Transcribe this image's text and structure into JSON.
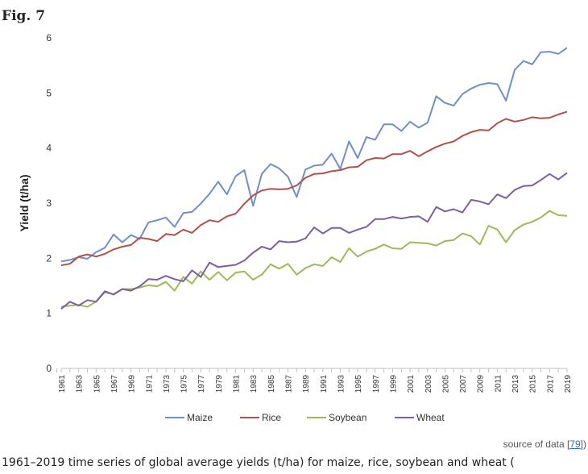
{
  "figure": {
    "label": "Fig. 7",
    "source_prefix": "source of data [",
    "source_ref": "79",
    "source_suffix": "])",
    "caption": "1961–2019 time series of global average yields (t/ha) for maize, rice, soybean and wheat ("
  },
  "colors": {
    "Maize": "#6f8fc9",
    "Rice": "#b0524c",
    "Soybean": "#9bbb59",
    "Wheat": "#7c5fa3",
    "axis": "#bfbfbf"
  },
  "chart_data": {
    "type": "line",
    "title": "",
    "xlabel": "",
    "ylabel": "Yield (t/ha)",
    "ylim": [
      0,
      6
    ],
    "yticks": [
      0,
      1,
      2,
      3,
      4,
      5,
      6
    ],
    "grid": false,
    "legend_position": "bottom",
    "x": [
      1961,
      1962,
      1963,
      1964,
      1965,
      1966,
      1967,
      1968,
      1969,
      1970,
      1971,
      1972,
      1973,
      1974,
      1975,
      1976,
      1977,
      1978,
      1979,
      1980,
      1981,
      1982,
      1983,
      1984,
      1985,
      1986,
      1987,
      1988,
      1989,
      1990,
      1991,
      1992,
      1993,
      1994,
      1995,
      1996,
      1997,
      1998,
      1999,
      2000,
      2001,
      2002,
      2003,
      2004,
      2005,
      2006,
      2007,
      2008,
      2009,
      2010,
      2011,
      2012,
      2013,
      2014,
      2015,
      2016,
      2017,
      2018,
      2019
    ],
    "xtick_labels": [
      "1961",
      "1963",
      "1965",
      "1967",
      "1969",
      "1971",
      "1973",
      "1975",
      "1977",
      "1979",
      "1981",
      "1983",
      "1985",
      "1987",
      "1989",
      "1991",
      "1993",
      "1995",
      "1997",
      "1999",
      "2001",
      "2003",
      "2005",
      "2007",
      "2009",
      "2011",
      "2013",
      "2015",
      "2017",
      "2019"
    ],
    "series": [
      {
        "name": "Maize",
        "values": [
          1.94,
          1.97,
          2.02,
          1.99,
          2.11,
          2.19,
          2.43,
          2.29,
          2.42,
          2.35,
          2.65,
          2.69,
          2.74,
          2.57,
          2.82,
          2.84,
          2.99,
          3.17,
          3.39,
          3.16,
          3.49,
          3.6,
          2.95,
          3.53,
          3.71,
          3.63,
          3.48,
          3.11,
          3.61,
          3.68,
          3.7,
          3.9,
          3.62,
          4.12,
          3.82,
          4.2,
          4.15,
          4.43,
          4.43,
          4.31,
          4.48,
          4.37,
          4.46,
          4.94,
          4.82,
          4.77,
          4.98,
          5.08,
          5.15,
          5.18,
          5.16,
          4.86,
          5.42,
          5.58,
          5.52,
          5.74,
          5.75,
          5.71,
          5.82
        ]
      },
      {
        "name": "Rice",
        "values": [
          1.87,
          1.9,
          2.03,
          2.07,
          2.03,
          2.08,
          2.16,
          2.21,
          2.24,
          2.37,
          2.35,
          2.31,
          2.44,
          2.42,
          2.52,
          2.46,
          2.6,
          2.69,
          2.66,
          2.76,
          2.81,
          2.99,
          3.14,
          3.23,
          3.26,
          3.25,
          3.26,
          3.32,
          3.46,
          3.53,
          3.54,
          3.58,
          3.6,
          3.65,
          3.66,
          3.78,
          3.82,
          3.81,
          3.89,
          3.89,
          3.95,
          3.85,
          3.94,
          4.02,
          4.08,
          4.12,
          4.22,
          4.29,
          4.33,
          4.32,
          4.45,
          4.53,
          4.48,
          4.51,
          4.56,
          4.54,
          4.55,
          4.61,
          4.66
        ]
      },
      {
        "name": "Soybean",
        "values": [
          1.12,
          1.14,
          1.15,
          1.12,
          1.21,
          1.38,
          1.35,
          1.44,
          1.44,
          1.47,
          1.51,
          1.49,
          1.57,
          1.41,
          1.66,
          1.54,
          1.76,
          1.61,
          1.75,
          1.6,
          1.74,
          1.76,
          1.61,
          1.7,
          1.89,
          1.81,
          1.9,
          1.7,
          1.82,
          1.89,
          1.86,
          2.02,
          1.93,
          2.18,
          2.03,
          2.12,
          2.17,
          2.25,
          2.18,
          2.17,
          2.29,
          2.28,
          2.27,
          2.23,
          2.31,
          2.33,
          2.45,
          2.4,
          2.25,
          2.59,
          2.52,
          2.29,
          2.51,
          2.61,
          2.66,
          2.74,
          2.86,
          2.78,
          2.77
        ]
      },
      {
        "name": "Wheat",
        "values": [
          1.08,
          1.21,
          1.14,
          1.24,
          1.21,
          1.4,
          1.34,
          1.44,
          1.41,
          1.49,
          1.62,
          1.61,
          1.68,
          1.62,
          1.58,
          1.78,
          1.66,
          1.92,
          1.84,
          1.86,
          1.88,
          1.96,
          2.1,
          2.21,
          2.16,
          2.31,
          2.29,
          2.3,
          2.36,
          2.56,
          2.45,
          2.55,
          2.55,
          2.46,
          2.52,
          2.57,
          2.71,
          2.71,
          2.75,
          2.72,
          2.75,
          2.76,
          2.66,
          2.93,
          2.85,
          2.89,
          2.83,
          3.06,
          3.03,
          2.98,
          3.16,
          3.09,
          3.24,
          3.31,
          3.32,
          3.42,
          3.53,
          3.43,
          3.55
        ]
      }
    ]
  }
}
